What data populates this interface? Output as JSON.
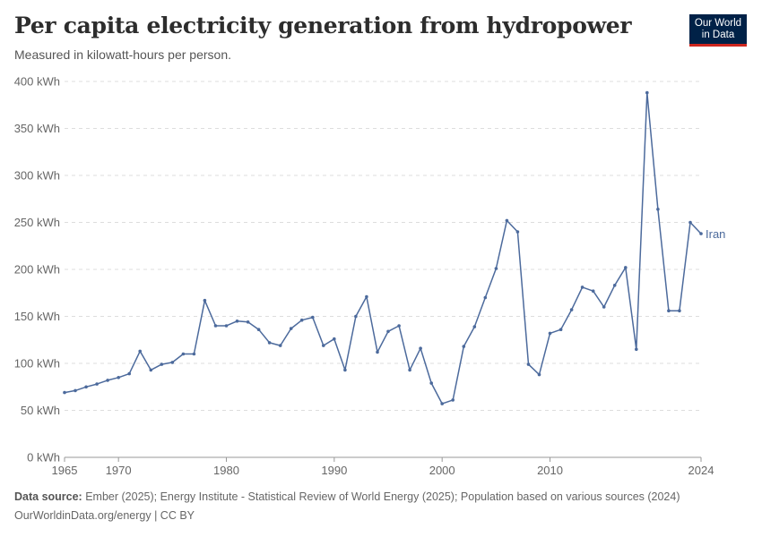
{
  "header": {
    "title": "Per capita electricity generation from hydropower",
    "subtitle": "Measured in kilowatt-hours per person."
  },
  "logo": {
    "line1": "Our World",
    "line2": "in Data"
  },
  "footer": {
    "source_label": "Data source:",
    "source_text": " Ember (2025); Energy Institute - Statistical Review of World Energy (2025); Population based on various sources (2024)",
    "link_text": "OurWorldinData.org/energy | CC BY"
  },
  "colors": {
    "series": "#4c6a9c",
    "logo_bg": "#002147",
    "logo_accent": "#ce261e"
  },
  "chart_data": {
    "type": "line",
    "title": "Per capita electricity generation from hydropower",
    "subtitle": "Measured in kilowatt-hours per person.",
    "xlim": [
      1965,
      2024
    ],
    "ylim": [
      0,
      400
    ],
    "x_ticks": [
      1965,
      1970,
      1980,
      1990,
      2000,
      2010,
      2024
    ],
    "y_ticks": [
      {
        "value": 0,
        "label": "0 kWh"
      },
      {
        "value": 50,
        "label": "50 kWh"
      },
      {
        "value": 100,
        "label": "100 kWh"
      },
      {
        "value": 150,
        "label": "150 kWh"
      },
      {
        "value": 200,
        "label": "200 kWh"
      },
      {
        "value": 250,
        "label": "250 kWh"
      },
      {
        "value": 300,
        "label": "300 kWh"
      },
      {
        "value": 350,
        "label": "350 kWh"
      },
      {
        "value": 400,
        "label": "400 kWh"
      }
    ],
    "grid": true,
    "series": [
      {
        "name": "Iran",
        "x": [
          1965,
          1966,
          1967,
          1968,
          1969,
          1970,
          1971,
          1972,
          1973,
          1974,
          1975,
          1976,
          1977,
          1978,
          1979,
          1980,
          1981,
          1982,
          1983,
          1984,
          1985,
          1986,
          1987,
          1988,
          1989,
          1990,
          1991,
          1992,
          1993,
          1994,
          1995,
          1996,
          1997,
          1998,
          1999,
          2000,
          2001,
          2002,
          2003,
          2004,
          2005,
          2006,
          2007,
          2008,
          2009,
          2010,
          2011,
          2012,
          2013,
          2014,
          2015,
          2016,
          2017,
          2018,
          2019,
          2020,
          2021,
          2022,
          2023,
          2024
        ],
        "y": [
          69,
          71,
          75,
          78,
          82,
          85,
          89,
          113,
          93,
          99,
          101,
          110,
          110,
          167,
          140,
          140,
          145,
          144,
          136,
          122,
          119,
          137,
          146,
          149,
          119,
          126,
          93,
          150,
          171,
          112,
          134,
          140,
          93,
          116,
          79,
          57,
          61,
          118,
          139,
          170,
          201,
          252,
          240,
          99,
          88,
          132,
          136,
          157,
          181,
          177,
          160,
          183,
          202,
          115,
          388,
          264,
          156,
          156,
          250,
          238
        ]
      }
    ]
  }
}
